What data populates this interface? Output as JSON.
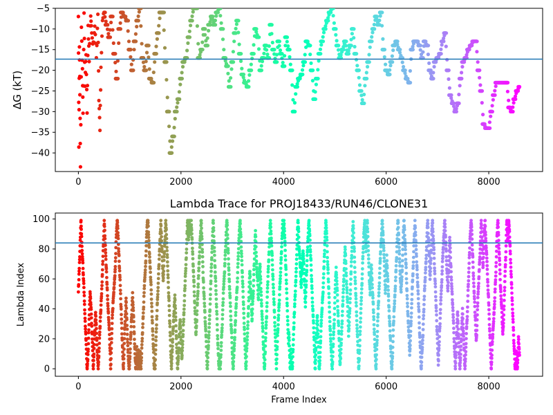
{
  "chart_data": [
    {
      "type": "scatter",
      "title": "",
      "xlabel": "",
      "ylabel": "ΔG (kT)",
      "xlim": [
        -450,
        9050
      ],
      "ylim": [
        -44.5,
        -5
      ],
      "xticks": [
        0,
        2000,
        4000,
        6000,
        8000
      ],
      "yticks": [
        -40,
        -35,
        -30,
        -25,
        -20,
        -15,
        -10,
        -5
      ],
      "colormap": "rainbow",
      "reference_line": {
        "y": -17.3,
        "color": "#1f77b4"
      },
      "series": [
        {
          "points": [
            [
              0,
              -6
            ],
            [
              10,
              -38
            ],
            [
              20,
              -14
            ],
            [
              30,
              -26
            ],
            [
              40,
              -44
            ],
            [
              60,
              -10
            ],
            [
              80,
              -20
            ],
            [
              90,
              -31
            ],
            [
              110,
              -7
            ],
            [
              130,
              -24
            ],
            [
              150,
              -16
            ],
            [
              170,
              -30
            ],
            [
              190,
              -9
            ],
            [
              210,
              -18
            ],
            [
              240,
              -6
            ],
            [
              260,
              -11
            ],
            [
              290,
              -14
            ],
            [
              320,
              -9
            ],
            [
              350,
              -17
            ],
            [
              380,
              -6
            ],
            [
              400,
              -27
            ],
            [
              420,
              -34
            ],
            [
              440,
              -20
            ],
            [
              470,
              -8
            ],
            [
              500,
              -6
            ],
            [
              550,
              -9
            ],
            [
              600,
              -12
            ],
            [
              650,
              -7
            ],
            [
              700,
              -16
            ],
            [
              750,
              -22
            ],
            [
              800,
              -10
            ],
            [
              850,
              -6
            ],
            [
              900,
              -7
            ],
            [
              950,
              -8
            ],
            [
              1000,
              -15
            ],
            [
              1050,
              -20
            ],
            [
              1100,
              -13
            ],
            [
              1150,
              -8
            ],
            [
              1200,
              -5
            ],
            [
              1250,
              -17
            ],
            [
              1300,
              -20
            ],
            [
              1350,
              -14
            ],
            [
              1400,
              -22
            ],
            [
              1450,
              -23
            ],
            [
              1500,
              -16
            ],
            [
              1550,
              -11
            ],
            [
              1600,
              -6
            ],
            [
              1650,
              -6
            ],
            [
              1700,
              -18
            ],
            [
              1750,
              -30
            ],
            [
              1800,
              -40
            ],
            [
              1850,
              -36
            ],
            [
              1900,
              -30
            ],
            [
              1950,
              -27
            ],
            [
              2000,
              -22
            ],
            [
              2050,
              -18
            ],
            [
              2100,
              -17
            ],
            [
              2150,
              -12
            ],
            [
              2200,
              -8
            ],
            [
              2250,
              -5
            ],
            [
              2300,
              -5
            ],
            [
              2350,
              -17
            ],
            [
              2400,
              -15
            ],
            [
              2450,
              -10
            ],
            [
              2500,
              -14
            ],
            [
              2550,
              -9
            ],
            [
              2600,
              -7
            ],
            [
              2650,
              -9
            ],
            [
              2700,
              -6
            ],
            [
              2750,
              -5
            ],
            [
              2800,
              -10
            ],
            [
              2850,
              -17
            ],
            [
              2900,
              -19
            ],
            [
              2950,
              -24
            ],
            [
              3000,
              -18
            ],
            [
              3050,
              -11
            ],
            [
              3100,
              -8
            ],
            [
              3150,
              -16
            ],
            [
              3200,
              -21
            ],
            [
              3250,
              -23
            ],
            [
              3300,
              -24
            ],
            [
              3350,
              -20
            ],
            [
              3400,
              -16
            ],
            [
              3450,
              -10
            ],
            [
              3500,
              -12
            ],
            [
              3550,
              -20
            ],
            [
              3600,
              -17
            ],
            [
              3650,
              -14
            ],
            [
              3700,
              -17
            ],
            [
              3750,
              -9
            ],
            [
              3800,
              -15
            ],
            [
              3850,
              -18
            ],
            [
              3900,
              -13
            ],
            [
              3950,
              -16
            ],
            [
              4000,
              -19
            ],
            [
              4050,
              -12
            ],
            [
              4100,
              -15
            ],
            [
              4150,
              -20
            ],
            [
              4200,
              -30
            ],
            [
              4250,
              -24
            ],
            [
              4300,
              -22
            ],
            [
              4350,
              -21
            ],
            [
              4400,
              -18
            ],
            [
              4450,
              -13
            ],
            [
              4500,
              -14
            ],
            [
              4550,
              -20
            ],
            [
              4600,
              -27
            ],
            [
              4650,
              -22
            ],
            [
              4700,
              -16
            ],
            [
              4750,
              -13
            ],
            [
              4800,
              -10
            ],
            [
              4850,
              -8
            ],
            [
              4900,
              -6
            ],
            [
              4950,
              -5
            ],
            [
              5000,
              -10
            ],
            [
              5050,
              -14
            ],
            [
              5100,
              -17
            ],
            [
              5150,
              -15
            ],
            [
              5200,
              -13
            ],
            [
              5250,
              -16
            ],
            [
              5300,
              -14
            ],
            [
              5350,
              -10
            ],
            [
              5400,
              -16
            ],
            [
              5450,
              -20
            ],
            [
              5500,
              -25
            ],
            [
              5550,
              -28
            ],
            [
              5600,
              -22
            ],
            [
              5650,
              -18
            ],
            [
              5700,
              -13
            ],
            [
              5750,
              -10
            ],
            [
              5800,
              -7
            ],
            [
              5850,
              -9
            ],
            [
              5900,
              -6
            ],
            [
              5950,
              -15
            ],
            [
              6000,
              -20
            ],
            [
              6050,
              -21
            ],
            [
              6100,
              -18
            ],
            [
              6150,
              -14
            ],
            [
              6200,
              -13
            ],
            [
              6250,
              -15
            ],
            [
              6300,
              -17
            ],
            [
              6350,
              -20
            ],
            [
              6400,
              -22
            ],
            [
              6450,
              -23
            ],
            [
              6500,
              -15
            ],
            [
              6550,
              -13
            ],
            [
              6600,
              -13
            ],
            [
              6650,
              -14
            ],
            [
              6700,
              -17
            ],
            [
              6750,
              -13
            ],
            [
              6800,
              -14
            ],
            [
              6850,
              -20
            ],
            [
              6900,
              -22
            ],
            [
              6950,
              -18
            ],
            [
              7000,
              -17
            ],
            [
              7050,
              -16
            ],
            [
              7100,
              -13
            ],
            [
              7150,
              -11
            ],
            [
              7200,
              -20
            ],
            [
              7250,
              -26
            ],
            [
              7300,
              -28
            ],
            [
              7350,
              -30
            ],
            [
              7400,
              -28
            ],
            [
              7450,
              -22
            ],
            [
              7500,
              -18
            ],
            [
              7550,
              -17
            ],
            [
              7600,
              -15
            ],
            [
              7650,
              -14
            ],
            [
              7700,
              -13
            ],
            [
              7750,
              -13
            ],
            [
              7800,
              -20
            ],
            [
              7850,
              -25
            ],
            [
              7900,
              -33
            ],
            [
              7950,
              -34
            ],
            [
              8000,
              -34
            ],
            [
              8050,
              -30
            ],
            [
              8100,
              -26
            ],
            [
              8150,
              -23
            ],
            [
              8200,
              -23
            ],
            [
              8250,
              -23
            ],
            [
              8300,
              -23
            ],
            [
              8350,
              -23
            ],
            [
              8400,
              -29
            ],
            [
              8450,
              -30
            ],
            [
              8500,
              -27
            ],
            [
              8550,
              -25
            ],
            [
              8600,
              -24
            ]
          ]
        }
      ]
    },
    {
      "type": "scatter",
      "title": "Lambda Trace for PROJ18433/RUN46/CLONE31",
      "xlabel": "Frame Index",
      "ylabel": "Lambda Index",
      "xlim": [
        -450,
        9050
      ],
      "ylim": [
        -5,
        104
      ],
      "xticks": [
        0,
        2000,
        4000,
        6000,
        8000
      ],
      "yticks": [
        0,
        20,
        40,
        60,
        80,
        100
      ],
      "colormap": "rainbow",
      "reference_line": {
        "y": 84,
        "color": "#1f77b4"
      },
      "series": [
        {
          "description": "dense sweeping scatter of lambda index (0-99) vs frame index (0-8600)",
          "x_range": [
            0,
            8600
          ],
          "y_range": [
            0,
            99
          ]
        }
      ]
    }
  ]
}
